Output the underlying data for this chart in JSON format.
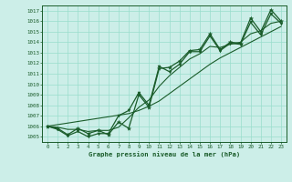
{
  "title": "Graphe pression niveau de la mer (hPa)",
  "bg_color": "#cceee8",
  "grid_color": "#99ddcc",
  "line_color": "#1a5c2a",
  "ylim": [
    1004.5,
    1017.5
  ],
  "xlim": [
    -0.5,
    23.5
  ],
  "yticks": [
    1005,
    1006,
    1007,
    1008,
    1009,
    1010,
    1011,
    1012,
    1013,
    1014,
    1015,
    1016,
    1017
  ],
  "xticks": [
    0,
    1,
    2,
    3,
    4,
    5,
    6,
    7,
    8,
    9,
    10,
    11,
    12,
    13,
    14,
    15,
    16,
    17,
    18,
    19,
    20,
    21,
    22,
    23
  ],
  "hours": [
    0,
    1,
    2,
    3,
    4,
    5,
    6,
    7,
    8,
    9,
    10,
    11,
    12,
    13,
    14,
    15,
    16,
    17,
    18,
    19,
    20,
    21,
    22,
    23
  ],
  "pressure_main": [
    1006.0,
    1005.8,
    1005.2,
    1005.8,
    1005.3,
    1005.6,
    1005.2,
    1006.4,
    1005.8,
    1009.0,
    1007.8,
    1011.5,
    1011.6,
    1012.2,
    1013.2,
    1013.3,
    1014.8,
    1013.3,
    1014.0,
    1013.9,
    1016.3,
    1015.0,
    1017.1,
    1016.0
  ],
  "pressure_zigzag": [
    1006.0,
    1005.7,
    1005.1,
    1005.5,
    1005.0,
    1005.3,
    1005.3,
    1007.0,
    1007.5,
    1009.2,
    1008.0,
    1011.7,
    1011.2,
    1011.9,
    1013.1,
    1013.1,
    1014.6,
    1013.2,
    1013.9,
    1013.8,
    1015.9,
    1014.7,
    1016.7,
    1015.8
  ],
  "pressure_smooth1": [
    1006.0,
    1005.9,
    1005.7,
    1005.7,
    1005.5,
    1005.6,
    1005.6,
    1005.9,
    1006.8,
    1007.8,
    1008.5,
    1009.8,
    1010.8,
    1011.6,
    1012.4,
    1012.9,
    1013.6,
    1013.5,
    1013.8,
    1014.0,
    1014.8,
    1015.1,
    1015.8,
    1016.0
  ],
  "pressure_trend": [
    1006.0,
    1006.15,
    1006.3,
    1006.45,
    1006.6,
    1006.75,
    1006.9,
    1007.05,
    1007.2,
    1007.5,
    1007.9,
    1008.4,
    1009.1,
    1009.8,
    1010.5,
    1011.2,
    1011.9,
    1012.5,
    1013.0,
    1013.5,
    1014.0,
    1014.5,
    1015.0,
    1015.5
  ]
}
